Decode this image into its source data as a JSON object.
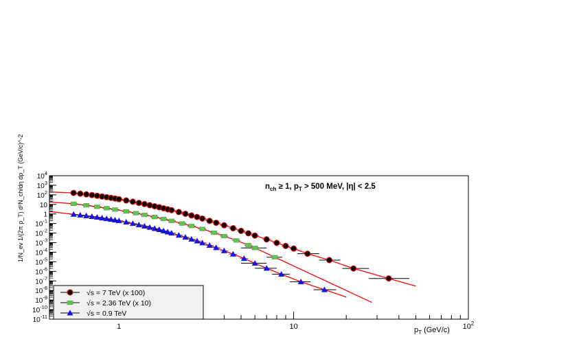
{
  "chart_data": {
    "type": "scatter",
    "title": "",
    "annotation": {
      "main": "n",
      "sub1": "ch",
      "mid": " ≥ 1, p",
      "sub2": "T",
      "tail": " > 500 MeV, |η| < 2.5"
    },
    "xlabel": {
      "main": "p",
      "sub": "T",
      "tail": " (GeV/c)"
    },
    "ylabel": "1/N_ev 1/(2π p_T) d²N_ch/dη dp_T (GeV/c)^-2",
    "xscale": "log",
    "yscale": "log",
    "xlim": [
      0.4,
      100
    ],
    "ylim": [
      1e-11,
      10000
    ],
    "x_tick_labels": [
      {
        "value": 1,
        "label": "1"
      },
      {
        "value": 10,
        "label": "10"
      },
      {
        "value": 100,
        "label": "10",
        "sup": "2"
      }
    ],
    "y_tick_labels": [
      {
        "value": 10000,
        "label": "10",
        "sup": "4"
      },
      {
        "value": 1000,
        "label": "10",
        "sup": "3"
      },
      {
        "value": 100,
        "label": "10",
        "sup": "2"
      },
      {
        "value": 10,
        "label": "10",
        "sup": ""
      },
      {
        "value": 1,
        "label": "1",
        "sup": ""
      },
      {
        "value": 0.1,
        "label": "10",
        "sup": "-1"
      },
      {
        "value": 0.01,
        "label": "10",
        "sup": "-2"
      },
      {
        "value": 0.001,
        "label": "10",
        "sup": "-3"
      },
      {
        "value": 0.0001,
        "label": "10",
        "sup": "-4"
      },
      {
        "value": 1e-05,
        "label": "10",
        "sup": "-5"
      },
      {
        "value": 1e-06,
        "label": "10",
        "sup": "-6"
      },
      {
        "value": 1e-07,
        "label": "10",
        "sup": "-7"
      },
      {
        "value": 1e-08,
        "label": "10",
        "sup": "-8"
      },
      {
        "value": 1e-09,
        "label": "10",
        "sup": "-9"
      },
      {
        "value": 1e-10,
        "label": "10",
        "sup": "-10"
      },
      {
        "value": 1e-11,
        "label": "10",
        "sup": "-11"
      }
    ],
    "grid": false,
    "legend_position": "bottom-left",
    "series": [
      {
        "name": "√s = 7 TeV (x 100)",
        "color": "#000000",
        "edge_color": "#ff0000",
        "marker": "circle",
        "fit": {
          "y_at_04": 200,
          "x_end": 50
        },
        "points": [
          [
            0.55,
            158
          ],
          [
            0.6,
            133
          ],
          [
            0.65,
            112
          ],
          [
            0.7,
            94
          ],
          [
            0.75,
            79
          ],
          [
            0.8,
            67
          ],
          [
            0.85,
            57
          ],
          [
            0.9,
            48
          ],
          [
            0.95,
            41
          ],
          [
            1.0,
            35
          ],
          [
            1.1,
            26
          ],
          [
            1.2,
            19
          ],
          [
            1.3,
            14.3
          ],
          [
            1.4,
            10.9
          ],
          [
            1.5,
            8.3
          ],
          [
            1.6,
            6.4
          ],
          [
            1.7,
            5.0
          ],
          [
            1.8,
            3.9
          ],
          [
            1.9,
            3.1
          ],
          [
            2.0,
            2.5
          ],
          [
            2.2,
            1.6
          ],
          [
            2.4,
            1.05
          ],
          [
            2.6,
            0.7
          ],
          [
            2.8,
            0.48
          ],
          [
            3.0,
            0.33
          ],
          [
            3.3,
            0.19
          ],
          [
            3.6,
            0.12
          ],
          [
            4.0,
            0.065
          ],
          [
            4.5,
            0.032
          ],
          [
            5.0,
            0.017
          ],
          [
            5.5,
            0.0095
          ],
          [
            6.0,
            0.0055
          ],
          [
            7.0,
            0.0022
          ],
          [
            8.0,
            0.00095
          ],
          [
            9.0,
            0.00045
          ],
          [
            10.0,
            0.00024
          ],
          [
            12.0,
            7e-05
          ],
          [
            16.0,
            1.5e-05
          ],
          [
            22.0,
            2e-06
          ],
          [
            35.0,
            1.8e-07
          ]
        ],
        "x_errors": [
          [
            12.0,
            10.5,
            14.0
          ],
          [
            16.0,
            14.0,
            18.5
          ],
          [
            22.0,
            19.0,
            27.0
          ],
          [
            35.0,
            27.0,
            46.0
          ]
        ]
      },
      {
        "name": "√s = 2.36 TeV (x 10)",
        "color": "#55cc44",
        "edge_color": "#808080",
        "marker": "square-cross",
        "fit": {
          "y_at_04": 18,
          "x_end": 28
        },
        "points": [
          [
            0.55,
            11.5
          ],
          [
            0.65,
            8.0
          ],
          [
            0.75,
            5.6
          ],
          [
            0.85,
            4.0
          ],
          [
            0.95,
            2.9
          ],
          [
            1.1,
            1.85
          ],
          [
            1.25,
            1.2
          ],
          [
            1.4,
            0.8
          ],
          [
            1.6,
            0.48
          ],
          [
            1.8,
            0.3
          ],
          [
            2.0,
            0.19
          ],
          [
            2.3,
            0.1
          ],
          [
            2.6,
            0.055
          ],
          [
            3.0,
            0.027
          ],
          [
            3.5,
            0.011
          ],
          [
            4.0,
            0.0048
          ],
          [
            4.7,
            0.0017
          ],
          [
            5.5,
            0.00055
          ],
          [
            6.0,
            0.00028
          ],
          [
            7.8,
            3e-05
          ]
        ],
        "x_errors": [
          [
            6.0,
            5.0,
            7.0
          ],
          [
            7.8,
            7.0,
            8.6
          ]
        ]
      },
      {
        "name": "√s = 0.9 TeV",
        "color": "#1515ee",
        "edge_color": "#1515ee",
        "marker": "triangle",
        "fit": {
          "y_at_04": 1.8,
          "x_end": 20
        },
        "points": [
          [
            0.55,
            0.92
          ],
          [
            0.6,
            0.77
          ],
          [
            0.65,
            0.64
          ],
          [
            0.7,
            0.54
          ],
          [
            0.75,
            0.45
          ],
          [
            0.8,
            0.38
          ],
          [
            0.85,
            0.32
          ],
          [
            0.9,
            0.27
          ],
          [
            0.95,
            0.23
          ],
          [
            1.0,
            0.195
          ],
          [
            1.1,
            0.14
          ],
          [
            1.2,
            0.1
          ],
          [
            1.3,
            0.073
          ],
          [
            1.4,
            0.054
          ],
          [
            1.5,
            0.04
          ],
          [
            1.6,
            0.03
          ],
          [
            1.7,
            0.023
          ],
          [
            1.8,
            0.017
          ],
          [
            1.9,
            0.013
          ],
          [
            2.0,
            0.01
          ],
          [
            2.2,
            0.006
          ],
          [
            2.4,
            0.0037
          ],
          [
            2.6,
            0.0023
          ],
          [
            2.8,
            0.0015
          ],
          [
            3.0,
            0.00095
          ],
          [
            3.3,
            0.00052
          ],
          [
            3.6,
            0.0003
          ],
          [
            4.0,
            0.00014
          ],
          [
            4.5,
            6.3e-05
          ],
          [
            5.2,
            2.2e-05
          ],
          [
            6.0,
            7e-06
          ],
          [
            7.0,
            2.1e-06
          ],
          [
            8.5,
            5e-07
          ],
          [
            11.0,
            8e-08
          ],
          [
            15.0,
            1.2e-08
          ]
        ],
        "x_errors": [
          [
            6.0,
            5.0,
            7.0
          ],
          [
            7.0,
            6.0,
            8.0
          ],
          [
            8.5,
            7.5,
            9.5
          ],
          [
            11.0,
            9.5,
            12.5
          ],
          [
            15.0,
            13.0,
            17.5
          ]
        ]
      }
    ]
  }
}
